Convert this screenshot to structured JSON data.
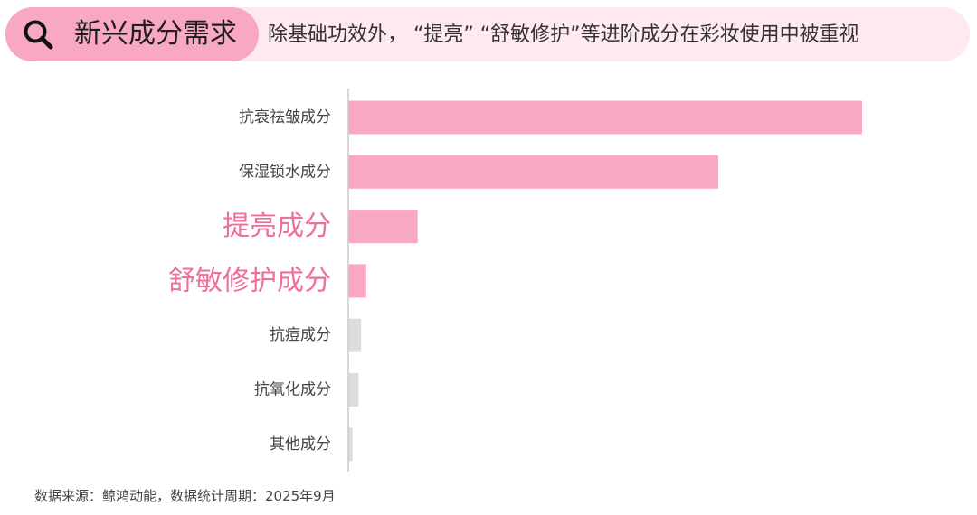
{
  "header": {
    "title": "新兴成分需求",
    "subtitle": "除基础功效外，  “提亮”  “舒敏修护”等进阶成分在彩妆使用中被重视"
  },
  "icons": {
    "search": "search-icon"
  },
  "colors": {
    "banner_bg": "#fde9ef",
    "pill_bg": "#f8a8c2",
    "accent_bar": "#f8a8c2",
    "accent_text": "#ef6f9a",
    "muted_bar": "#dcdcdc",
    "label_text": "#444444",
    "axis": "#cccccc"
  },
  "chart_data": {
    "type": "bar",
    "orientation": "horizontal",
    "categories": [
      "抗衰祛皱成分",
      "保湿锁水成分",
      "提亮成分",
      "舒敏修护成分",
      "抗痘成分",
      "抗氧化成分",
      "其他成分"
    ],
    "values": [
      100,
      72,
      13.5,
      3.5,
      2.5,
      2,
      0.8
    ],
    "highlight": [
      false,
      false,
      true,
      true,
      false,
      false,
      false
    ],
    "bar_colors": [
      "#f8a8c2",
      "#f8a8c2",
      "#f8a8c2",
      "#f8a8c2",
      "#dcdcdc",
      "#dcdcdc",
      "#dcdcdc"
    ],
    "xlim": [
      0,
      100
    ],
    "axis_ticks_shown": false,
    "grid": false,
    "legend": "none",
    "title": "",
    "xlabel": "",
    "ylabel": ""
  },
  "footer": {
    "source": "数据来源：鲸鸿动能，数据统计周期：2025年9月"
  }
}
